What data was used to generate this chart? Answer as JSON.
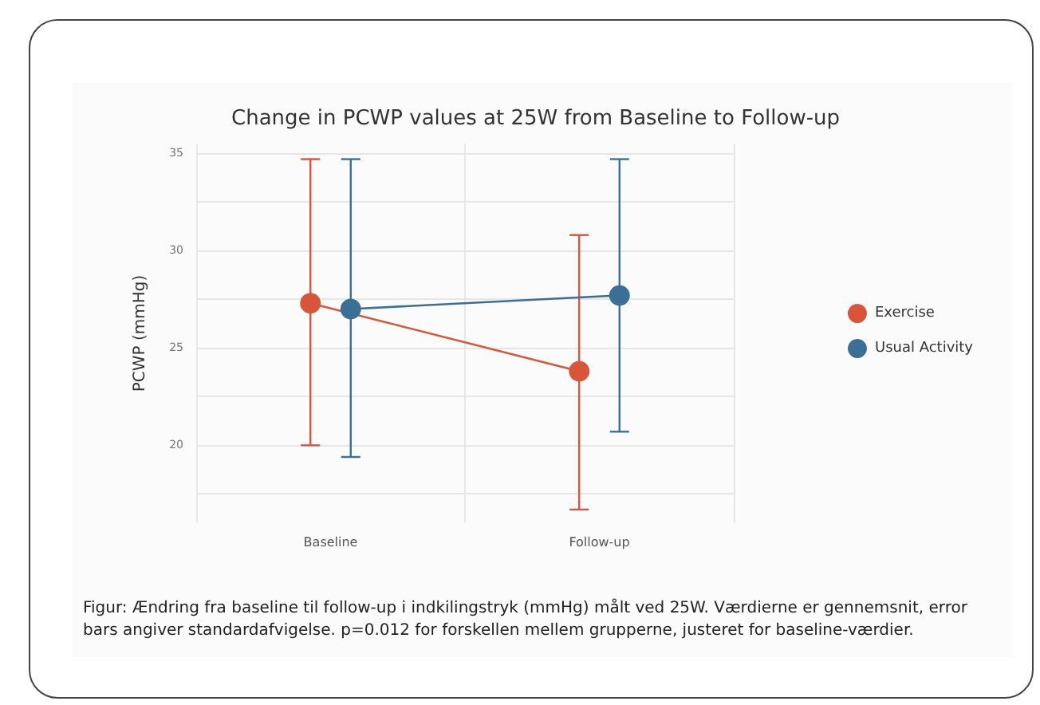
{
  "chart_data": {
    "type": "line",
    "title": "Change in PCWP values at 25W from Baseline to Follow-up",
    "ylabel": "PCWP (mmHg)",
    "categories": [
      "Baseline",
      "Follow-up"
    ],
    "series": [
      {
        "name": "Exercise",
        "color": "#d9553a",
        "values": [
          27.3,
          23.8
        ],
        "errors": [
          [
            20.0,
            34.7
          ],
          [
            16.7,
            30.8
          ]
        ]
      },
      {
        "name": "Usual Activity",
        "color": "#3a6f96",
        "values": [
          27.0,
          27.7
        ],
        "errors": [
          [
            19.4,
            34.7
          ],
          [
            20.7,
            34.7
          ]
        ]
      }
    ],
    "ylim": [
      16,
      35.5
    ],
    "yticks": [
      {
        "value": 17.5,
        "label": null
      },
      20,
      {
        "value": 22.5,
        "label": null
      },
      25,
      {
        "value": 27.5,
        "label": null
      },
      30,
      {
        "value": 32.5,
        "label": null
      },
      35
    ],
    "grid": true,
    "legend": "right",
    "marker": "circle",
    "line_style": "solid",
    "annotations": [
      "Figur: Ændring fra baseline til follow-up i indkilingstryk (mmHg) målt ved 25W. Værdierne er gennemsnit, error bars angiver standardafvigelse. p=0.012 for forskellen mellem grupperne, justeret for baseline-værdier."
    ]
  }
}
